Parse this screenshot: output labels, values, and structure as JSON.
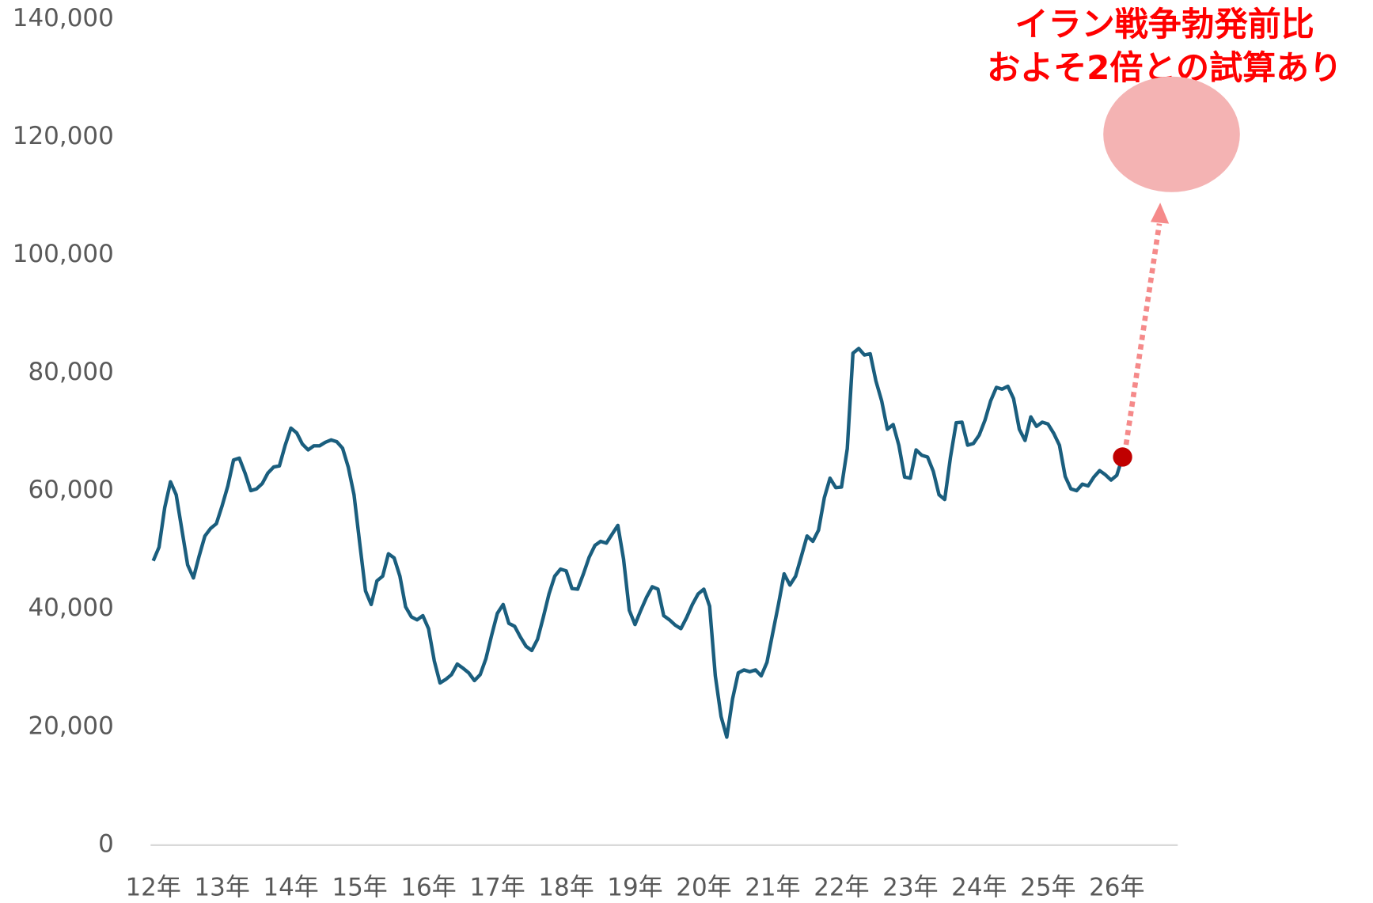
{
  "chart_data": {
    "type": "line",
    "annotation": [
      "イラン戦争勃発前比",
      "およそ2倍との試算あり"
    ],
    "categories": [
      "12年",
      null,
      null,
      null,
      null,
      null,
      null,
      null,
      null,
      null,
      null,
      null,
      "13年",
      null,
      null,
      null,
      null,
      null,
      null,
      null,
      null,
      null,
      null,
      null,
      "14年",
      null,
      null,
      null,
      null,
      null,
      null,
      null,
      null,
      null,
      null,
      null,
      "15年",
      null,
      null,
      null,
      null,
      null,
      null,
      null,
      null,
      null,
      null,
      null,
      "16年",
      null,
      null,
      null,
      null,
      null,
      null,
      null,
      null,
      null,
      null,
      null,
      "17年",
      null,
      null,
      null,
      null,
      null,
      null,
      null,
      null,
      null,
      null,
      null,
      "18年",
      null,
      null,
      null,
      null,
      null,
      null,
      null,
      null,
      null,
      null,
      null,
      "19年",
      null,
      null,
      null,
      null,
      null,
      null,
      null,
      null,
      null,
      null,
      null,
      "20年",
      null,
      null,
      null,
      null,
      null,
      null,
      null,
      null,
      null,
      null,
      null,
      "21年",
      null,
      null,
      null,
      null,
      null,
      null,
      null,
      null,
      null,
      null,
      null,
      "22年",
      null,
      null,
      null,
      null,
      null,
      null,
      null,
      null,
      null,
      null,
      null,
      "23年",
      null,
      null,
      null,
      null,
      null,
      null,
      null,
      null,
      null,
      null,
      null,
      "24年",
      null,
      null,
      null,
      null,
      null,
      null,
      null,
      null,
      null,
      null,
      null,
      "25年",
      null,
      null,
      null,
      null,
      null,
      null,
      null,
      null,
      null,
      null,
      null,
      "26年",
      null
    ],
    "series": [
      {
        "color": "#1a5e7e",
        "values": [
          48200,
          50500,
          57200,
          61600,
          59400,
          53400,
          47500,
          45300,
          49000,
          52400,
          53700,
          54500,
          57500,
          60900,
          65300,
          65600,
          63100,
          60100,
          60400,
          61300,
          63100,
          64100,
          64300,
          67800,
          70700,
          69900,
          68000,
          67000,
          67700,
          67700,
          68300,
          68700,
          68400,
          67300,
          64100,
          59400,
          51200,
          43100,
          40800,
          44800,
          45600,
          49400,
          48700,
          45600,
          40400,
          38700,
          38200,
          38900,
          36700,
          31200,
          27500,
          28100,
          28900,
          30700,
          30000,
          29200,
          27900,
          28900,
          31600,
          35600,
          39300,
          40800,
          37600,
          37100,
          35300,
          33700,
          33000,
          34900,
          38600,
          42600,
          45600,
          46800,
          46500,
          43500,
          43400,
          46000,
          48800,
          50800,
          51500,
          51200,
          52700,
          54200,
          48500,
          39800,
          37400,
          39800,
          42000,
          43800,
          43400,
          38900,
          38200,
          37300,
          36700,
          38600,
          40800,
          42600,
          43400,
          40500,
          28700,
          21800,
          18300,
          24800,
          29200,
          29700,
          29400,
          29700,
          28700,
          31000,
          35900,
          40800,
          46000,
          44100,
          45600,
          49000,
          52400,
          51500,
          53400,
          58900,
          62200,
          60600,
          60700,
          67200,
          83400,
          84200,
          83100,
          83300,
          78700,
          75300,
          70500,
          71300,
          67800,
          62400,
          62200,
          67000,
          66100,
          65800,
          63400,
          59400,
          58600,
          65800,
          71600,
          71700,
          67800,
          68100,
          69500,
          72000,
          75300,
          77600,
          77300,
          77800,
          75700,
          70500,
          68600,
          72600,
          71000,
          71700,
          71400,
          69800,
          67800,
          62500,
          60400,
          60100,
          61200,
          60900,
          62400,
          63500,
          62800,
          61900,
          62700,
          65800
        ]
      }
    ],
    "end_marker_color": "#c00000",
    "projection": {
      "value": 120500,
      "color": "#f4b3b3",
      "arrow_color": "#f58a8a"
    },
    "ylim": [
      0,
      140000
    ],
    "yticks": [
      0,
      {
        "value": 20000,
        "label": "20,000"
      },
      {
        "value": 40000,
        "label": "40,000"
      },
      {
        "value": 60000,
        "label": "60,000"
      },
      {
        "value": 80000,
        "label": "80,000"
      },
      {
        "value": 100000,
        "label": "100,000"
      },
      {
        "value": 120000,
        "label": "120,000"
      },
      {
        "value": 140000,
        "label": "140,000"
      }
    ]
  }
}
